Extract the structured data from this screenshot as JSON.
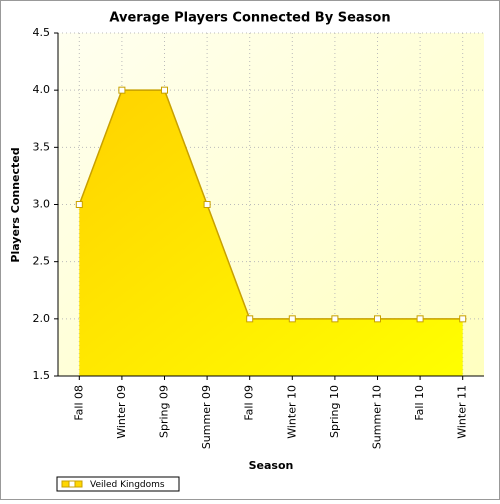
{
  "chart_data": {
    "type": "area",
    "title": "Average Players Connected By Season",
    "xlabel": "Season",
    "ylabel": "Players Connected",
    "categories": [
      "Fall 08",
      "Winter 09",
      "Spring 09",
      "Summer 09",
      "Fall 09",
      "Winter 10",
      "Spring 10",
      "Summer 10",
      "Fall 10",
      "Winter 11"
    ],
    "series": [
      {
        "name": "Veiled Kingdoms",
        "color": "#ffd700",
        "values": [
          3,
          4,
          4,
          3,
          2,
          2,
          2,
          2,
          2,
          2
        ]
      }
    ],
    "ylim": [
      1.5,
      4.5
    ],
    "yticks": [
      1.5,
      {
        "value": 2,
        "label": "2.0"
      },
      2.5,
      {
        "value": 3,
        "label": "3.0"
      },
      3.5,
      {
        "value": 4,
        "label": "4.0"
      },
      4.5
    ],
    "grid": true,
    "legend": "bottom-left"
  }
}
